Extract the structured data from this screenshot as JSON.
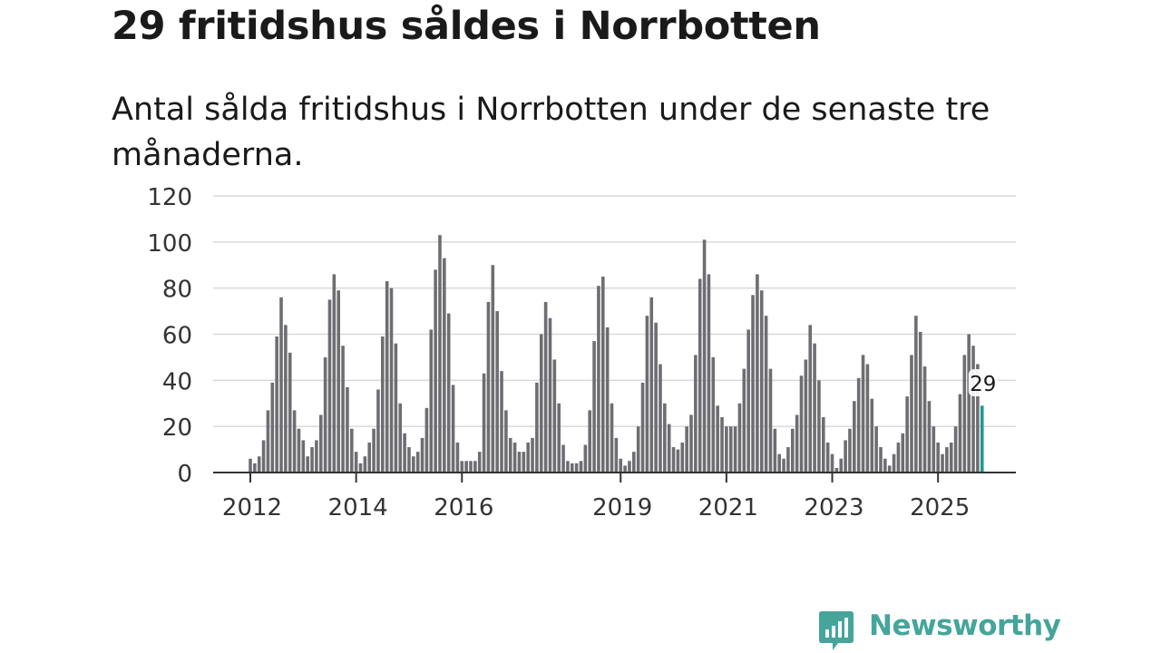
{
  "header": {
    "title": "29 fritidshus såldes i Norrbotten",
    "subtitle": "Antal sålda fritidshus i Norrbotten under de senaste tre månaderna."
  },
  "brand": {
    "name": "Newsworthy",
    "color": "#45a59b",
    "icon": "newsworthy-chart-logo-icon"
  },
  "chart_data": {
    "type": "bar",
    "title": "29 fritidshus såldes i Norrbotten",
    "subtitle": "Antal sålda fritidshus i Norrbotten under de senaste tre månaderna.",
    "xlabel": "",
    "ylabel": "",
    "ylim": [
      0,
      120
    ],
    "yticks": [
      "0",
      "20",
      "40",
      "60",
      "80",
      "100",
      "120"
    ],
    "x_ticks": [
      {
        "label": "2012",
        "index": 0
      },
      {
        "label": "2014",
        "index": 24
      },
      {
        "label": "2016",
        "index": 48
      },
      {
        "label": "2019",
        "index": 84
      },
      {
        "label": "2021",
        "index": 108
      },
      {
        "label": "2023",
        "index": 132
      },
      {
        "label": "2025",
        "index": 156
      }
    ],
    "grid": true,
    "legend": "none",
    "bar_color": "#6e6d72",
    "highlight_color": "#1f9a8f",
    "highlight_label": "29",
    "values": [
      6,
      4,
      7,
      14,
      27,
      39,
      59,
      76,
      64,
      52,
      27,
      19,
      14,
      7,
      11,
      14,
      25,
      50,
      75,
      86,
      79,
      55,
      37,
      19,
      9,
      4,
      7,
      13,
      19,
      36,
      59,
      83,
      80,
      56,
      30,
      17,
      11,
      7,
      9,
      15,
      28,
      62,
      88,
      103,
      93,
      69,
      38,
      13,
      5,
      5,
      5,
      5,
      9,
      43,
      74,
      90,
      70,
      44,
      27,
      15,
      13,
      9,
      9,
      13,
      15,
      39,
      60,
      74,
      67,
      49,
      30,
      12,
      5,
      4,
      4,
      5,
      12,
      27,
      57,
      81,
      85,
      63,
      30,
      15,
      6,
      3,
      5,
      9,
      20,
      39,
      68,
      76,
      65,
      47,
      30,
      21,
      11,
      10,
      13,
      20,
      25,
      51,
      84,
      101,
      86,
      50,
      29,
      24,
      20,
      20,
      20,
      30,
      45,
      62,
      77,
      86,
      79,
      68,
      45,
      19,
      8,
      6,
      11,
      19,
      25,
      42,
      49,
      64,
      56,
      40,
      24,
      13,
      8,
      2,
      6,
      14,
      19,
      31,
      41,
      51,
      47,
      32,
      20,
      11,
      6,
      3,
      8,
      13,
      17,
      33,
      51,
      68,
      61,
      46,
      31,
      20,
      13,
      8,
      11,
      13,
      20,
      34,
      51,
      60,
      55,
      47,
      29
    ]
  }
}
